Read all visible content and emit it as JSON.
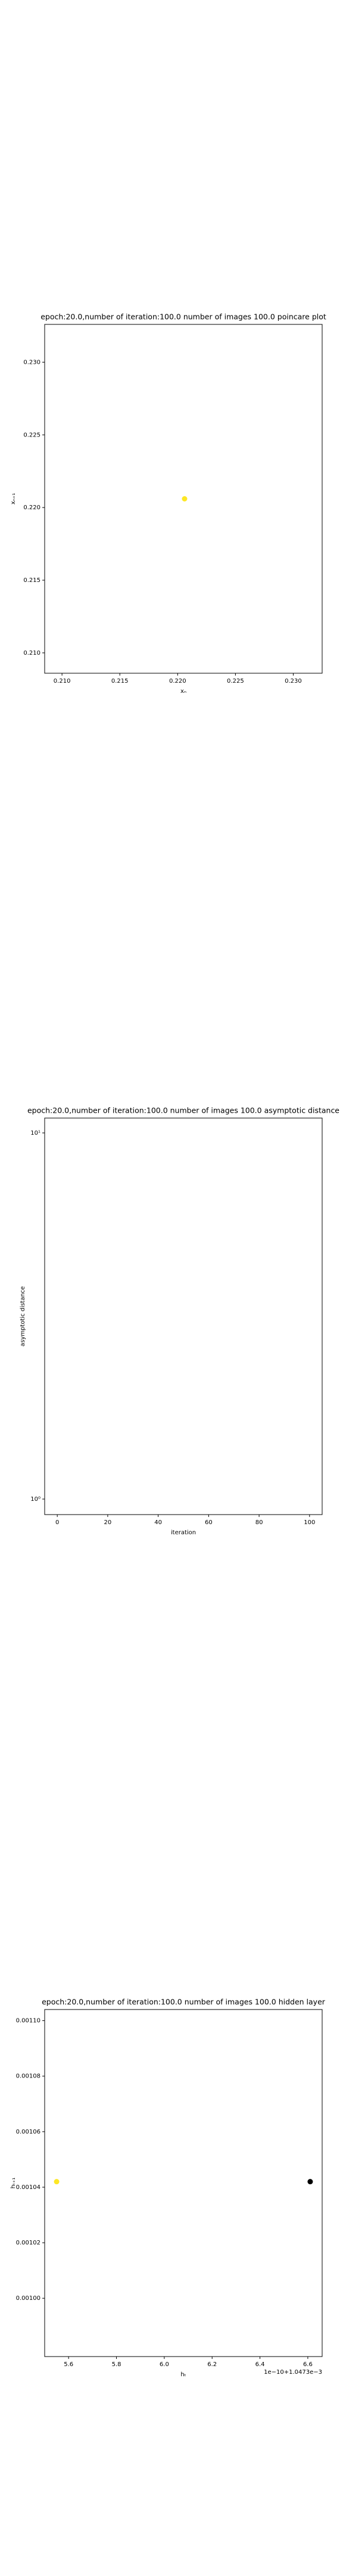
{
  "chart_data": [
    {
      "type": "scatter",
      "title": "epoch:20.0,number of iteration:100.0 number of images 100.0 poincare plot",
      "x_label": "xₙ",
      "y_label": "xₙ₊₁",
      "xlim": [
        0.2085,
        0.2325
      ],
      "ylim": [
        0.2086,
        0.2326
      ],
      "xticks": [
        {
          "value": 0.21,
          "label": "0.210"
        },
        0.215,
        {
          "value": 0.22,
          "label": "0.220"
        },
        0.225,
        {
          "value": 0.23,
          "label": "0.230"
        }
      ],
      "yticks": [
        {
          "value": 0.21,
          "label": "0.210"
        },
        0.215,
        {
          "value": 0.22,
          "label": "0.220"
        },
        0.225,
        {
          "value": 0.23,
          "label": "0.230"
        }
      ],
      "x": [
        0.2206
      ],
      "values": [
        0.2206
      ],
      "colors": [
        "#fde725"
      ]
    },
    {
      "type": "line",
      "title": "epoch:20.0,number of iteration:100.0  number of images 100.0 asymptotic distance",
      "x_label": "iteration",
      "y_label": "asymptotic distance",
      "log_y": true,
      "xlim": [
        -5,
        105
      ],
      "ylim": [
        0.907,
        10.98
      ],
      "xticks": [
        0,
        20,
        40,
        60,
        80,
        100
      ],
      "yticks": [
        {
          "value": 1,
          "label": "10⁰"
        },
        {
          "value": 10,
          "label": "10¹"
        }
      ]
    },
    {
      "type": "scatter",
      "title": "epoch:20.0,number of iteration:100.0  number of images 100.0 hidden layer",
      "x_label": "hₜ",
      "y_label": "hₜ₊₁",
      "x_offset_label": "1e−10+1.0473e−3",
      "xlim": [
        5.5,
        6.66
      ],
      "ylim": [
        0.000979,
        0.001104
      ],
      "xticks": [
        5.6,
        5.8,
        {
          "value": 6.0,
          "label": "6.0"
        },
        6.2,
        6.4,
        6.6
      ],
      "yticks": [
        {
          "value": 0.001,
          "label": "0.00100"
        },
        {
          "value": 0.00102,
          "label": "0.00102"
        },
        {
          "value": 0.00104,
          "label": "0.00104"
        },
        {
          "value": 0.00106,
          "label": "0.00106"
        },
        {
          "value": 0.00108,
          "label": "0.00108"
        },
        {
          "value": 0.0011,
          "label": "0.00110"
        }
      ],
      "x": [
        5.55,
        6.61
      ],
      "values": [
        0.001042,
        0.001042
      ],
      "colors": [
        "#fde725",
        "#000000"
      ]
    }
  ]
}
